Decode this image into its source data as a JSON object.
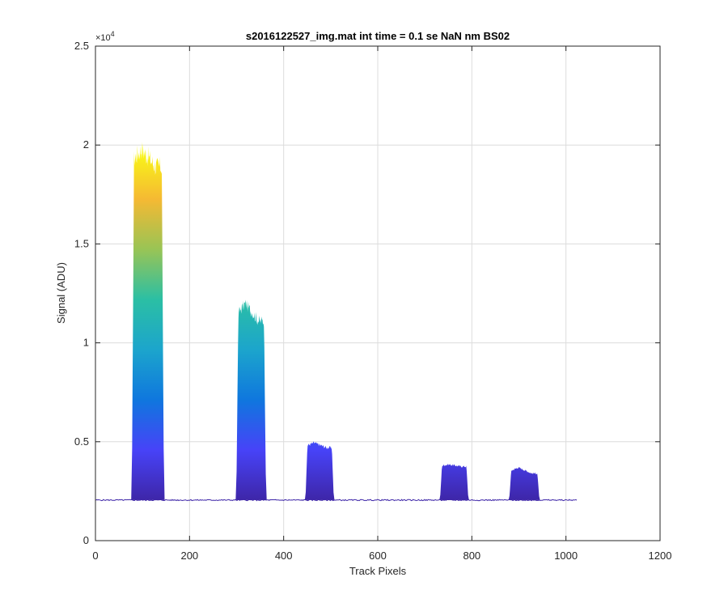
{
  "chart_data": {
    "type": "area",
    "title": "s2016122527_img.mat int time = 0.1 se  NaN nm BS02",
    "xlabel": "Track Pixels",
    "ylabel": "Signal (ADU)",
    "xlim": [
      0,
      1200
    ],
    "ylim": [
      0,
      25000
    ],
    "x_ticks": [
      0,
      200,
      400,
      600,
      800,
      1000,
      1200
    ],
    "x_tick_labels": [
      "0",
      "200",
      "400",
      "600",
      "800",
      "1000",
      "1200"
    ],
    "y_ticks": [
      0,
      5000,
      10000,
      15000,
      20000,
      25000
    ],
    "y_tick_labels": [
      "0",
      "0.5",
      "1",
      "1.5",
      "2",
      "2.5"
    ],
    "y_exponent_label": "×10",
    "y_exponent_power": "4",
    "grid": true,
    "baseline": 2050,
    "x_range": [
      1,
      1024
    ],
    "series": [
      {
        "x_start": 78,
        "x_end": 145,
        "peak": 19800,
        "top_value": 18900
      },
      {
        "x_start": 300,
        "x_end": 362,
        "peak": 12000,
        "top_value": 11100
      },
      {
        "x_start": 447,
        "x_end": 506,
        "peak": 4950,
        "top_value": 4700
      },
      {
        "x_start": 733,
        "x_end": 792,
        "peak": 3850,
        "top_value": 3750
      },
      {
        "x_start": 880,
        "x_end": 943,
        "peak": 3700,
        "top_value": 3400
      }
    ],
    "colormap": [
      "#3e26a8",
      "#4743f8",
      "#0f77de",
      "#1ca5cc",
      "#2bbfa4",
      "#99c455",
      "#f5b933",
      "#f9fb15"
    ]
  }
}
